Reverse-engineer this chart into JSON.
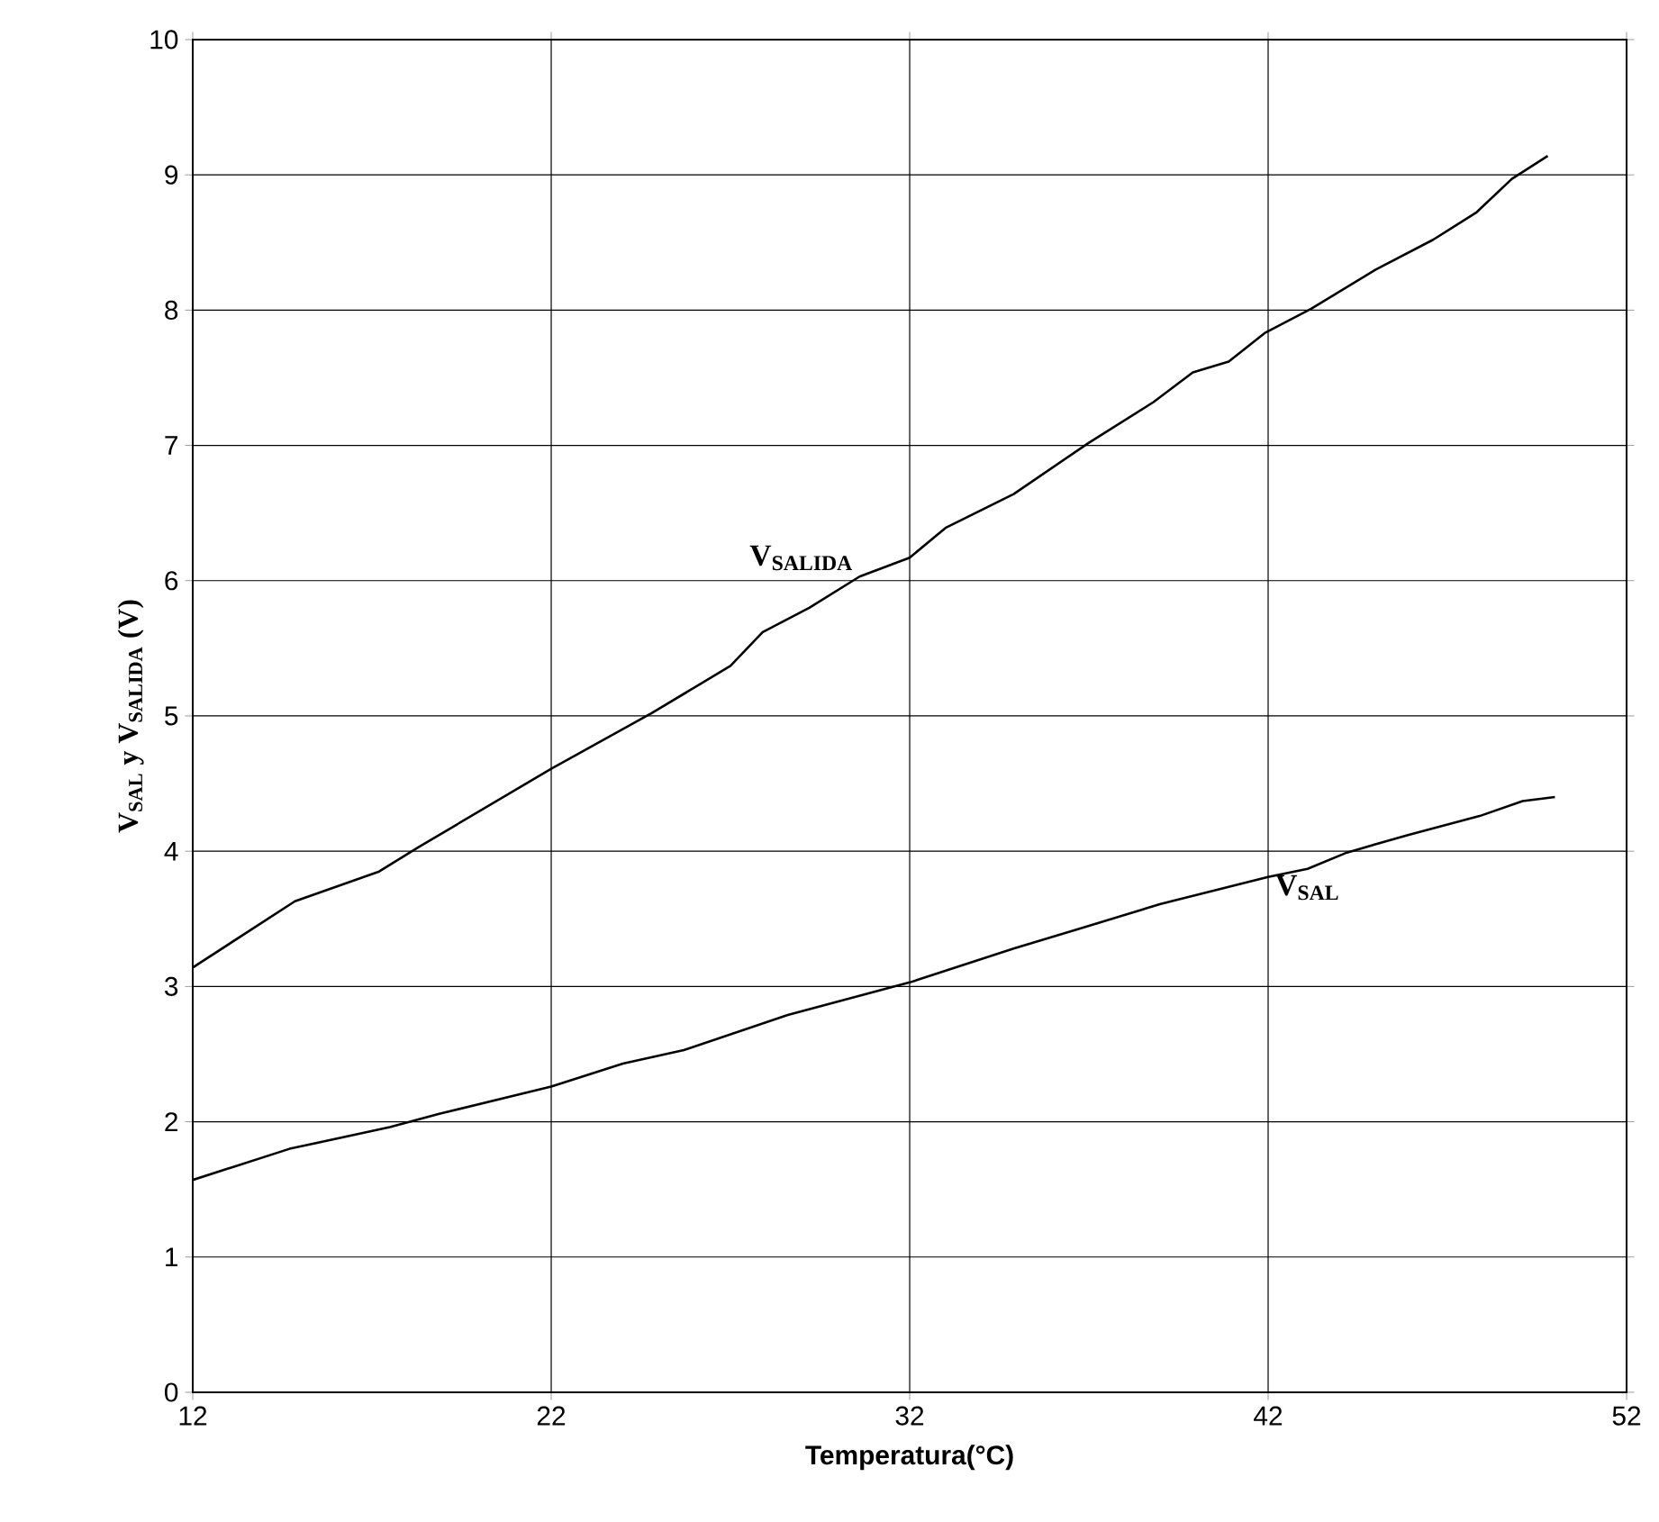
{
  "chart_data": {
    "type": "line",
    "xlabel": "**Temperatura(°C)**",
    "ylabel": "V$_{SAL}$ y V$_{SALIDA}$ (V)",
    "series": [
      {
        "name": "V$_{SALIDA}$",
        "color": "#000000",
        "x": [
          12,
          14.85,
          17.2,
          18.3,
          22,
          24.8,
          27,
          27.9,
          29.2,
          30.6,
          32,
          33,
          34.9,
          37,
          38.8,
          39.9,
          40.9,
          41.9,
          43.2,
          45,
          46.6,
          47.8,
          48.8,
          49.8
        ],
        "values": [
          3.14,
          3.63,
          3.85,
          4.03,
          4.61,
          5.02,
          5.37,
          5.62,
          5.8,
          6.03,
          6.17,
          6.39,
          6.64,
          7.02,
          7.32,
          7.54,
          7.62,
          7.83,
          8.01,
          8.3,
          8.52,
          8.72,
          8.97,
          9.14
        ]
      },
      {
        "name": "V$_{SAL}$",
        "color": "#000000",
        "x": [
          12,
          14.7,
          17.5,
          18.9,
          22,
          24,
          25.7,
          28.6,
          32,
          34.9,
          36.9,
          39,
          42,
          43.1,
          44.2,
          45.9,
          47.9,
          49.1,
          50
        ],
        "values": [
          1.57,
          1.8,
          1.96,
          2.06,
          2.26,
          2.43,
          2.53,
          2.79,
          3.03,
          3.28,
          3.44,
          3.61,
          3.81,
          3.87,
          3.99,
          4.12,
          4.26,
          4.37,
          4.4
        ]
      }
    ],
    "xlim": [
      12,
      52
    ],
    "xticks": [
      12,
      22,
      32,
      42,
      52
    ],
    "ylim": [
      0,
      10
    ],
    "yticks": [
      0,
      1,
      2,
      3,
      4,
      5,
      6,
      7,
      8,
      9,
      10
    ],
    "grid": true,
    "marker": "none",
    "line_style": "solid"
  }
}
